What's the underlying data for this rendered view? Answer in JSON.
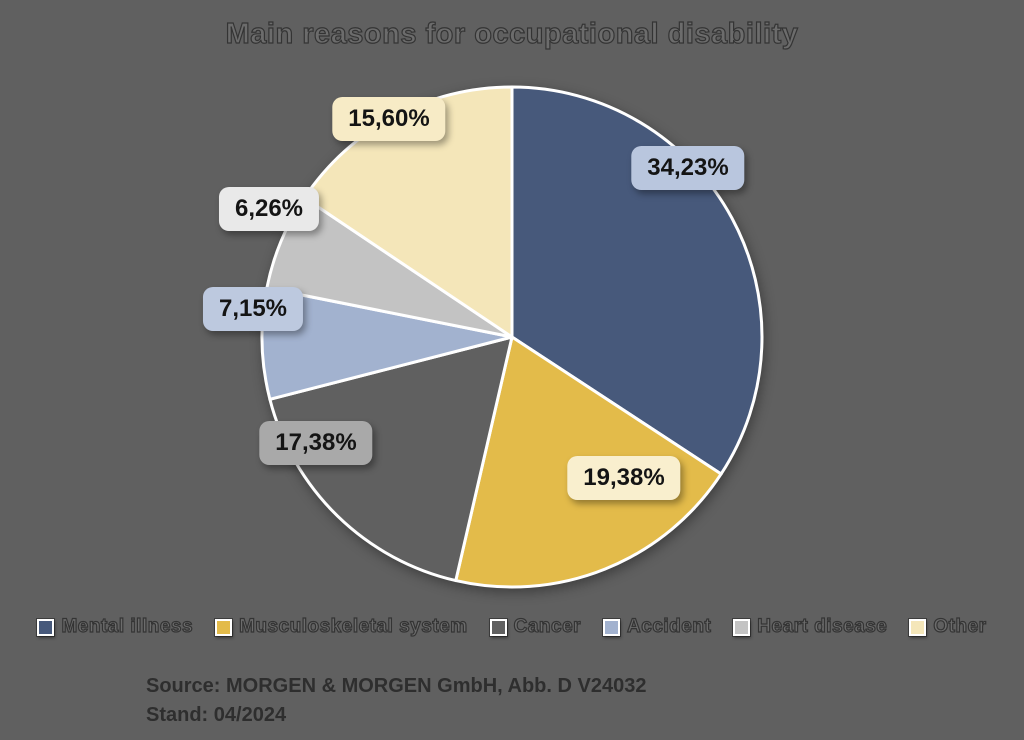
{
  "page": {
    "background": "#606060"
  },
  "title": "Main reasons for occupational disability",
  "chart_data": {
    "type": "pie",
    "title": "Main reasons for occupational disability",
    "unit": "%",
    "decimal_separator": "comma",
    "start_angle_deg": 0,
    "direction": "clockwise",
    "legend_position": "bottom",
    "slices": [
      {
        "label": "Mental illness",
        "value": 34.23,
        "display": "34,23%",
        "color": "#47597b",
        "label_bg": "#b9c6de"
      },
      {
        "label": "Musculoskeletal system",
        "value": 19.38,
        "display": "19,38%",
        "color": "#e3bb4a",
        "label_bg": "#f9efce"
      },
      {
        "label": "Cancer",
        "value": 17.38,
        "display": "17,38%",
        "color": "#606060",
        "label_bg": "#a9a9a9"
      },
      {
        "label": "Accident",
        "value": 7.15,
        "display": "7,15%",
        "color": "#a2b2cf",
        "label_bg": "#bdc9df"
      },
      {
        "label": "Heart disease",
        "value": 6.26,
        "display": "6,26%",
        "color": "#c3c3c3",
        "label_bg": "#e9e9e9"
      },
      {
        "label": "Other",
        "value": 15.6,
        "display": "15,60%",
        "color": "#f4e6b9",
        "label_bg": "#f7ebc6"
      }
    ]
  },
  "source": {
    "line1": "Source: MORGEN & MORGEN GmbH, Abb. D V24032",
    "line2": "Stand: 04/2024"
  }
}
